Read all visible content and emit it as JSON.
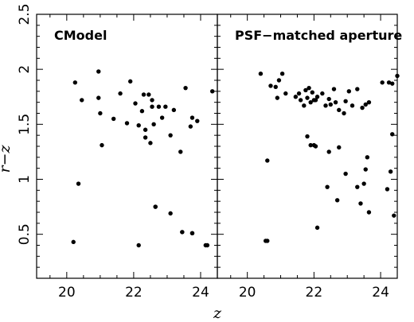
{
  "chart_data": [
    {
      "type": "scatter",
      "title": "CModel",
      "xlabel": "z",
      "ylabel": "r−z",
      "xlim": [
        19.1,
        24.5
      ],
      "ylim": [
        0.1,
        2.5
      ],
      "xticks": [
        "20",
        "22",
        "24"
      ],
      "yticks": [
        "0.5",
        "1",
        "1.5",
        "2",
        "2.5"
      ],
      "x": [
        20.25,
        20.35,
        20.45,
        20.95,
        20.95,
        21.0,
        21.05,
        21.4,
        21.6,
        21.8,
        21.9,
        22.05,
        22.15,
        22.25,
        22.3,
        22.35,
        22.35,
        22.45,
        22.5,
        22.55,
        22.55,
        22.6,
        22.65,
        22.75,
        22.85,
        22.95,
        23.1,
        23.2,
        23.4,
        23.45,
        23.55,
        23.7,
        23.75,
        23.75,
        23.9,
        24.15,
        24.35,
        20.2,
        22.15,
        22.65,
        23.1,
        23.45,
        23.75,
        24.2
      ],
      "y": [
        1.88,
        0.96,
        1.72,
        1.74,
        1.98,
        1.6,
        1.31,
        1.55,
        1.78,
        1.51,
        1.89,
        1.69,
        1.49,
        1.62,
        1.77,
        1.45,
        1.38,
        1.77,
        1.33,
        1.72,
        1.66,
        1.5,
        0.75,
        1.66,
        1.56,
        1.66,
        1.4,
        1.63,
        1.25,
        0.52,
        1.83,
        1.48,
        1.56,
        0.51,
        1.53,
        0.4,
        1.8,
        0.43,
        0.4,
        0.75,
        0.69,
        0.52,
        0.51,
        0.4
      ]
    },
    {
      "type": "scatter",
      "title": "PSF−matched aperture",
      "xlabel": "z",
      "xlim": [
        19.1,
        24.5
      ],
      "ylim": [
        0.1,
        2.5
      ],
      "xticks": [
        "20",
        "22",
        "24"
      ],
      "x": [
        20.4,
        20.55,
        20.7,
        20.85,
        20.9,
        20.95,
        21.05,
        21.15,
        21.45,
        21.55,
        21.6,
        21.7,
        21.75,
        21.8,
        21.85,
        21.9,
        21.95,
        22.0,
        22.0,
        22.05,
        22.1,
        22.25,
        22.35,
        22.45,
        22.5,
        22.6,
        22.65,
        22.75,
        22.9,
        22.95,
        23.05,
        23.15,
        23.3,
        23.45,
        23.55,
        23.65,
        24.05,
        24.25,
        24.35,
        24.5,
        20.6,
        20.6,
        21.8,
        21.9,
        22.05,
        22.1,
        22.4,
        22.45,
        22.7,
        22.75,
        22.95,
        23.3,
        23.4,
        23.5,
        23.55,
        23.6,
        23.65,
        24.2,
        24.3,
        24.35,
        24.4
      ],
      "y": [
        1.96,
        0.44,
        1.85,
        1.84,
        1.74,
        1.9,
        1.96,
        1.78,
        1.75,
        1.78,
        1.72,
        1.67,
        1.81,
        1.74,
        1.83,
        1.7,
        1.79,
        1.72,
        1.31,
        1.72,
        1.75,
        1.78,
        1.67,
        1.73,
        1.68,
        1.82,
        1.7,
        1.63,
        1.6,
        1.71,
        1.8,
        1.67,
        1.82,
        1.65,
        1.68,
        1.7,
        1.88,
        1.88,
        1.87,
        1.94,
        1.17,
        0.44,
        1.39,
        1.31,
        1.3,
        0.56,
        0.93,
        1.25,
        0.81,
        1.29,
        1.05,
        0.93,
        0.78,
        0.96,
        1.09,
        1.2,
        0.7,
        0.91,
        1.07,
        1.41,
        0.67
      ]
    }
  ]
}
